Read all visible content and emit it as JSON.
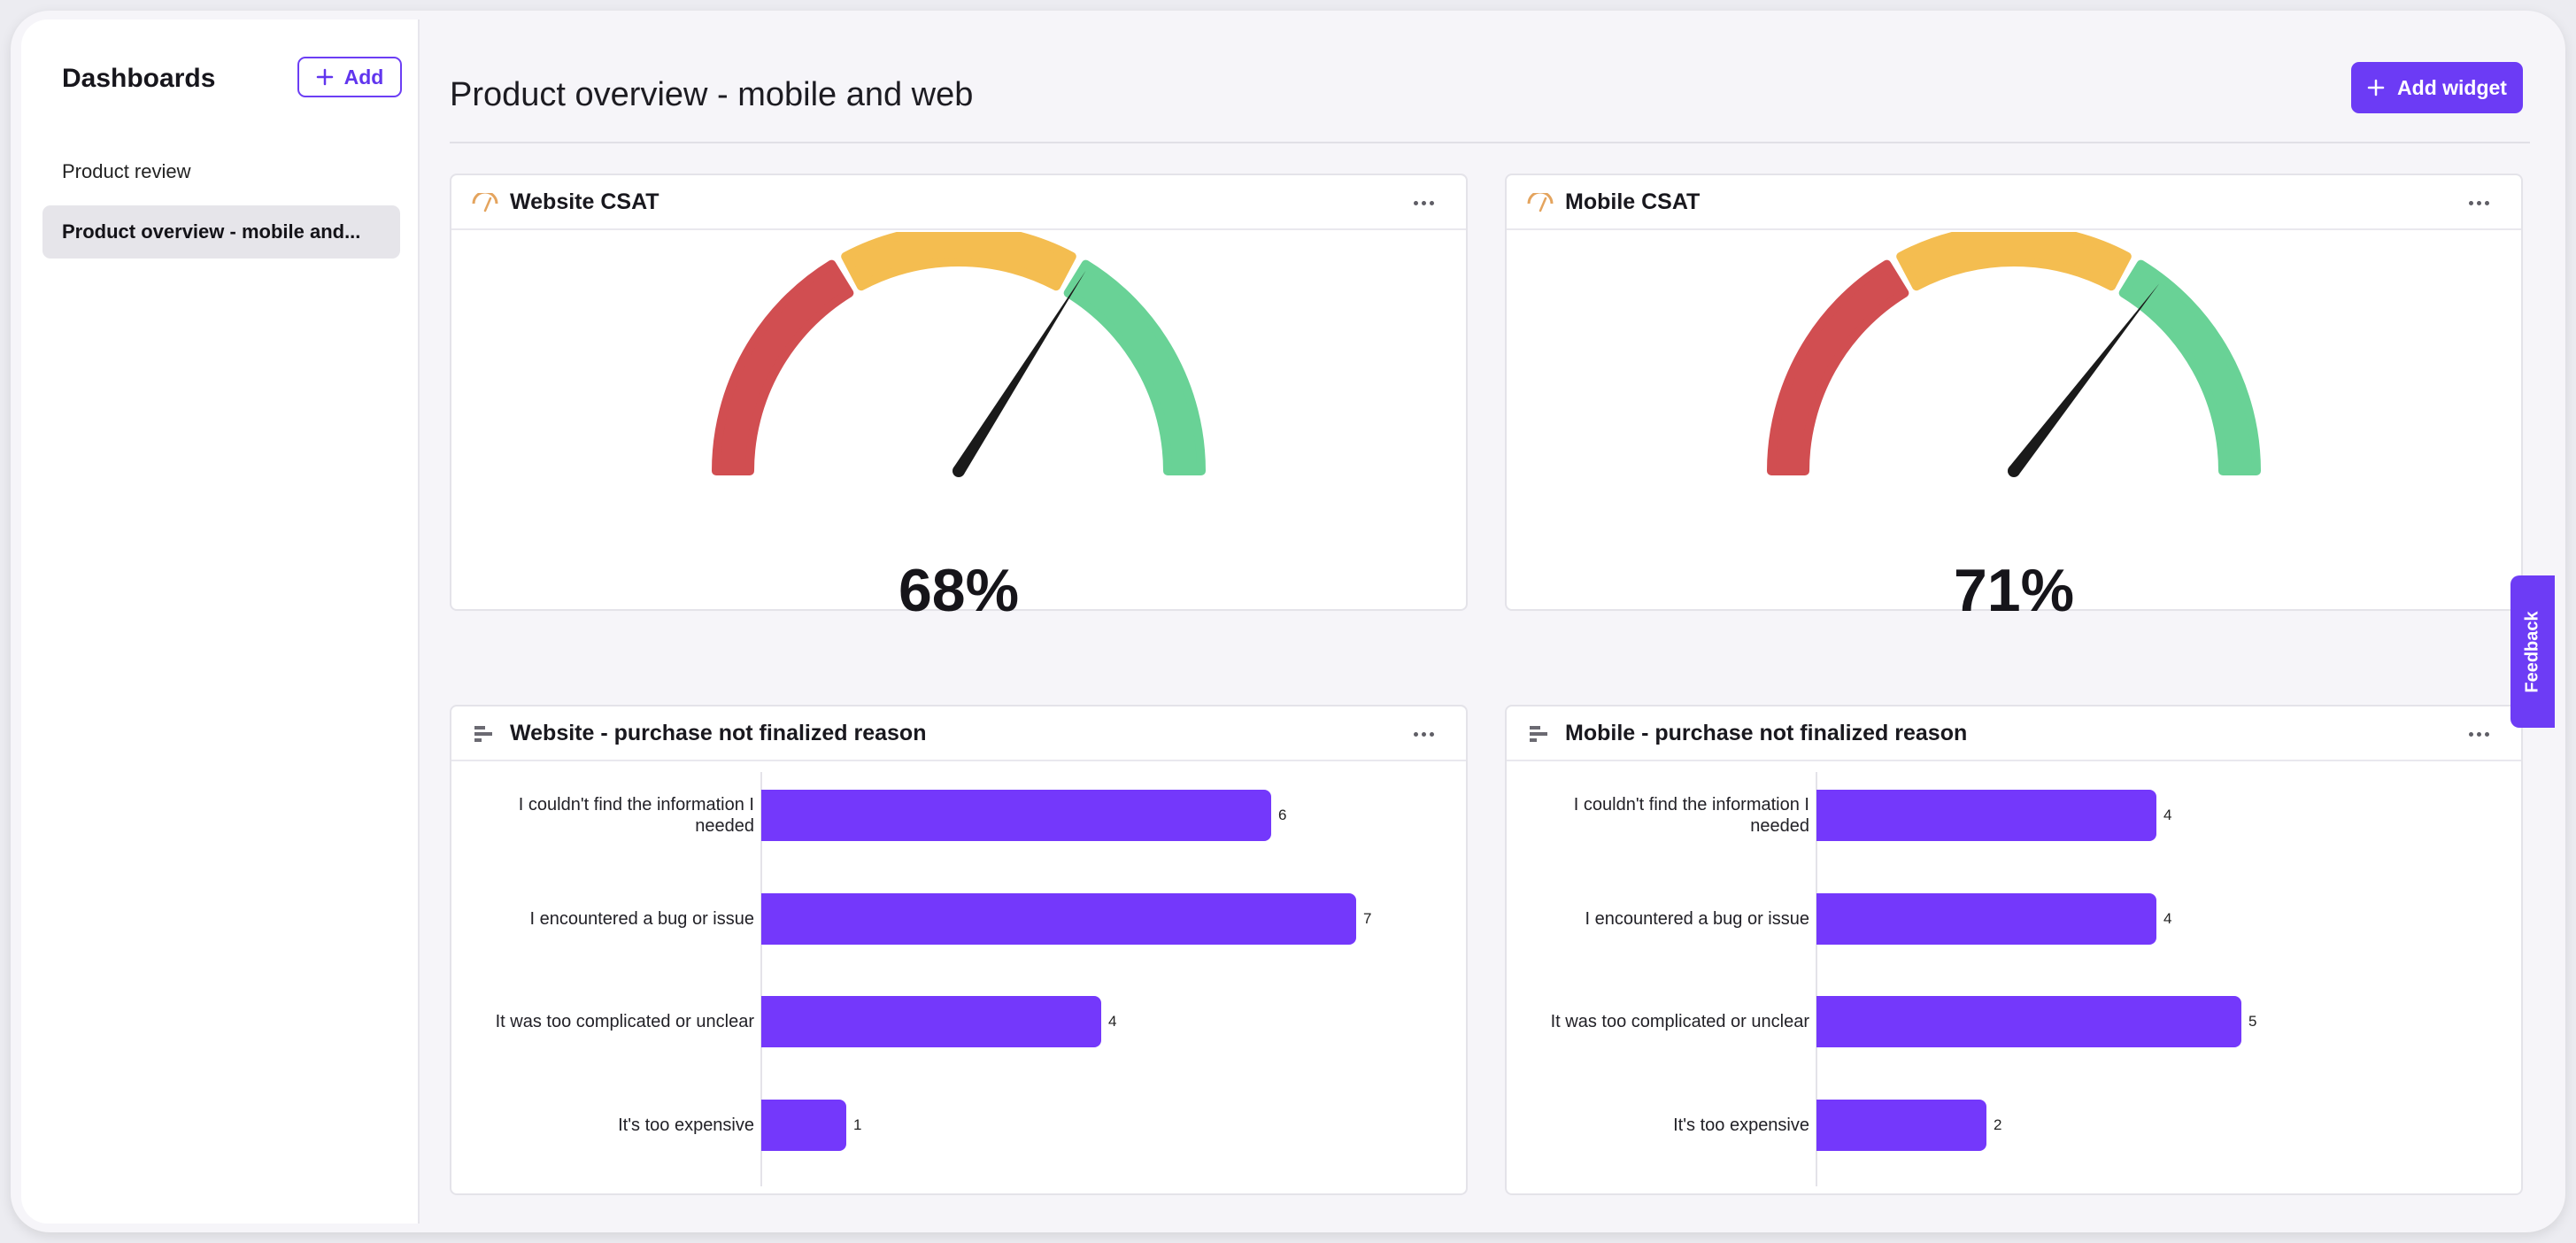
{
  "sidebar": {
    "title": "Dashboards",
    "add_label": "Add",
    "items": [
      {
        "label": "Product review",
        "active": false
      },
      {
        "label": "Product overview - mobile and...",
        "active": true
      }
    ]
  },
  "header": {
    "title": "Product overview - mobile and web",
    "add_widget_label": "Add widget"
  },
  "colors": {
    "accent": "#6c3bf5",
    "bar": "#7438fb",
    "gauge_red": "#d14e51",
    "gauge_yellow": "#f4bd50",
    "gauge_green": "#69d296",
    "needle": "#1a1a1a"
  },
  "widgets": {
    "website_csat": {
      "title": "Website CSAT",
      "value_label": "68%",
      "value": 68,
      "icon": "gauge-icon"
    },
    "mobile_csat": {
      "title": "Mobile CSAT",
      "value_label": "71%",
      "value": 71,
      "icon": "gauge-icon"
    },
    "website_reason": {
      "title": "Website - purchase not finalized reason",
      "icon": "bar-chart-icon"
    },
    "mobile_reason": {
      "title": "Mobile - purchase not finalized reason",
      "icon": "bar-chart-icon"
    }
  },
  "chart_data": [
    {
      "type": "bar",
      "orientation": "horizontal",
      "title": "Website - purchase not finalized reason",
      "categories": [
        "I couldn't find the information I needed",
        "I encountered a bug or issue",
        "It was too complicated or unclear",
        "It's too expensive"
      ],
      "values": [
        6,
        7,
        4,
        1
      ]
    },
    {
      "type": "bar",
      "orientation": "horizontal",
      "title": "Mobile - purchase not finalized reason",
      "categories": [
        "I couldn't find the information I needed",
        "I encountered a bug or issue",
        "It was too complicated or unclear",
        "It's too expensive"
      ],
      "values": [
        4,
        4,
        5,
        2
      ]
    }
  ],
  "feedback_label": "Feedback"
}
